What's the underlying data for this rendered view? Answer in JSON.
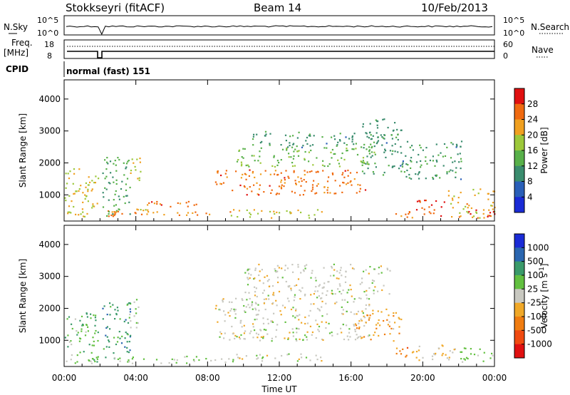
{
  "header": {
    "station": "Stokkseyri (fitACF)",
    "beam": "Beam 14",
    "date": "10/Feb/2013"
  },
  "top_panels": {
    "nsky_label": "N.Sky",
    "nsearch_label": "N.Search",
    "nsky_ticks": [
      "10^5",
      "10^0"
    ],
    "nsearch_ticks": [
      "10^5",
      "10^0"
    ],
    "freq_label": "Freq.",
    "freq_unit": "[MHz]",
    "freq_ticks": [
      "18",
      "8"
    ],
    "nave_label": "Nave",
    "nave_ticks": [
      "60",
      "0"
    ],
    "cpid_label": "CPID",
    "cpid_value": "normal (fast) 151"
  },
  "x_axis": {
    "ticks": [
      "00:00",
      "04:00",
      "08:00",
      "12:00",
      "16:00",
      "20:00",
      "00:00"
    ],
    "label": "Time UT",
    "range_hours": [
      0,
      24
    ]
  },
  "chart_data": [
    {
      "type": "heatmap",
      "panel": "power",
      "ylabel": "Slant Range [km]",
      "yticks": [
        "4000",
        "3000",
        "2000",
        "1000"
      ],
      "ylim": [
        180,
        4600
      ],
      "colorbar_label": "Power [dB]",
      "colorbar_ticks": [
        "28",
        "24",
        "20",
        "16",
        "12",
        "8",
        "4"
      ],
      "colorbar_range": [
        0,
        30
      ],
      "colors": [
        "#1a2bd6",
        "#2a5fb8",
        "#3a8c6e",
        "#58b04a",
        "#9cc83a",
        "#f0a020",
        "#f06a10",
        "#e01010"
      ],
      "regions": [
        {
          "t": [
            0.0,
            1.9
          ],
          "r": [
            300,
            1900
          ],
          "value": 18
        },
        {
          "t": [
            2.4,
            2.9
          ],
          "r": [
            350,
            550
          ],
          "value": 22
        },
        {
          "t": [
            2.1,
            3.7
          ],
          "r": [
            350,
            2200
          ],
          "value": 12
        },
        {
          "t": [
            3.6,
            4.3
          ],
          "r": [
            1400,
            2300
          ],
          "value": 18
        },
        {
          "t": [
            3.9,
            4.7
          ],
          "r": [
            450,
            600
          ],
          "value": 20
        },
        {
          "t": [
            4.6,
            5.4
          ],
          "r": [
            700,
            900
          ],
          "value": 24
        },
        {
          "t": [
            5.6,
            7.4
          ],
          "r": [
            650,
            850
          ],
          "value": 24
        },
        {
          "t": [
            2.4,
            9.8
          ],
          "r": [
            380,
            520
          ],
          "value": 22
        },
        {
          "t": [
            8.4,
            16.8
          ],
          "r": [
            1000,
            1800
          ],
          "value": 24
        },
        {
          "t": [
            9.6,
            17.4
          ],
          "r": [
            1900,
            2500
          ],
          "value": 14
        },
        {
          "t": [
            10.4,
            17.8
          ],
          "r": [
            2500,
            3000
          ],
          "value": 10
        },
        {
          "t": [
            16.6,
            18.9
          ],
          "r": [
            1600,
            3400
          ],
          "value": 10
        },
        {
          "t": [
            9.2,
            14.4
          ],
          "r": [
            300,
            560
          ],
          "value": 18
        },
        {
          "t": [
            18.3,
            19.6
          ],
          "r": [
            300,
            520
          ],
          "value": 22
        },
        {
          "t": [
            19.6,
            21.4
          ],
          "r": [
            350,
            900
          ],
          "value": 26
        },
        {
          "t": [
            21.4,
            24.0
          ],
          "r": [
            300,
            1200
          ],
          "value": 20
        },
        {
          "t": [
            18.9,
            22.2
          ],
          "r": [
            1500,
            2700
          ],
          "value": 10
        },
        {
          "t": [
            22.0,
            24.0
          ],
          "r": [
            300,
            550
          ],
          "value": 26
        }
      ]
    },
    {
      "type": "heatmap",
      "panel": "velocity",
      "ylabel": "Slant Range [km]",
      "yticks": [
        "4000",
        "3000",
        "2000",
        "1000"
      ],
      "ylim": [
        180,
        4600
      ],
      "colorbar_label": "Velocity [m s^-1]",
      "colorbar_ticks": [
        "1000",
        "500",
        "100",
        "25",
        "-25",
        "-100",
        "-500",
        "-1000"
      ],
      "colorbar_range": [
        -1200,
        1200
      ],
      "colors": [
        "#e01010",
        "#f04a10",
        "#f07c10",
        "#f0a828",
        "#c8c8c0",
        "#62c040",
        "#3a9a6a",
        "#2a66b0",
        "#1a2bd6"
      ],
      "regions": [
        {
          "t": [
            0.0,
            1.9
          ],
          "r": [
            300,
            1900
          ],
          "value": 300
        },
        {
          "t": [
            0.0,
            1.9
          ],
          "r": [
            300,
            500
          ],
          "value": 120
        },
        {
          "t": [
            2.1,
            3.7
          ],
          "r": [
            350,
            2200
          ],
          "value": 500
        },
        {
          "t": [
            3.6,
            4.3
          ],
          "r": [
            1400,
            2300
          ],
          "value": 150
        },
        {
          "t": [
            2.4,
            9.8
          ],
          "r": [
            300,
            520
          ],
          "value": 120
        },
        {
          "t": [
            8.4,
            17.0
          ],
          "r": [
            1000,
            2400
          ],
          "value": 0
        },
        {
          "t": [
            10.0,
            18.2
          ],
          "r": [
            2400,
            3400
          ],
          "value": 0
        },
        {
          "t": [
            16.2,
            18.8
          ],
          "r": [
            1000,
            2000
          ],
          "value": -300
        },
        {
          "t": [
            9.2,
            14.4
          ],
          "r": [
            350,
            600
          ],
          "value": 0
        },
        {
          "t": [
            18.4,
            19.6
          ],
          "r": [
            500,
            900
          ],
          "value": -500
        },
        {
          "t": [
            19.6,
            22.0
          ],
          "r": [
            400,
            900
          ],
          "value": -150
        },
        {
          "t": [
            22.0,
            24.0
          ],
          "r": [
            300,
            800
          ],
          "value": 200
        }
      ]
    }
  ]
}
